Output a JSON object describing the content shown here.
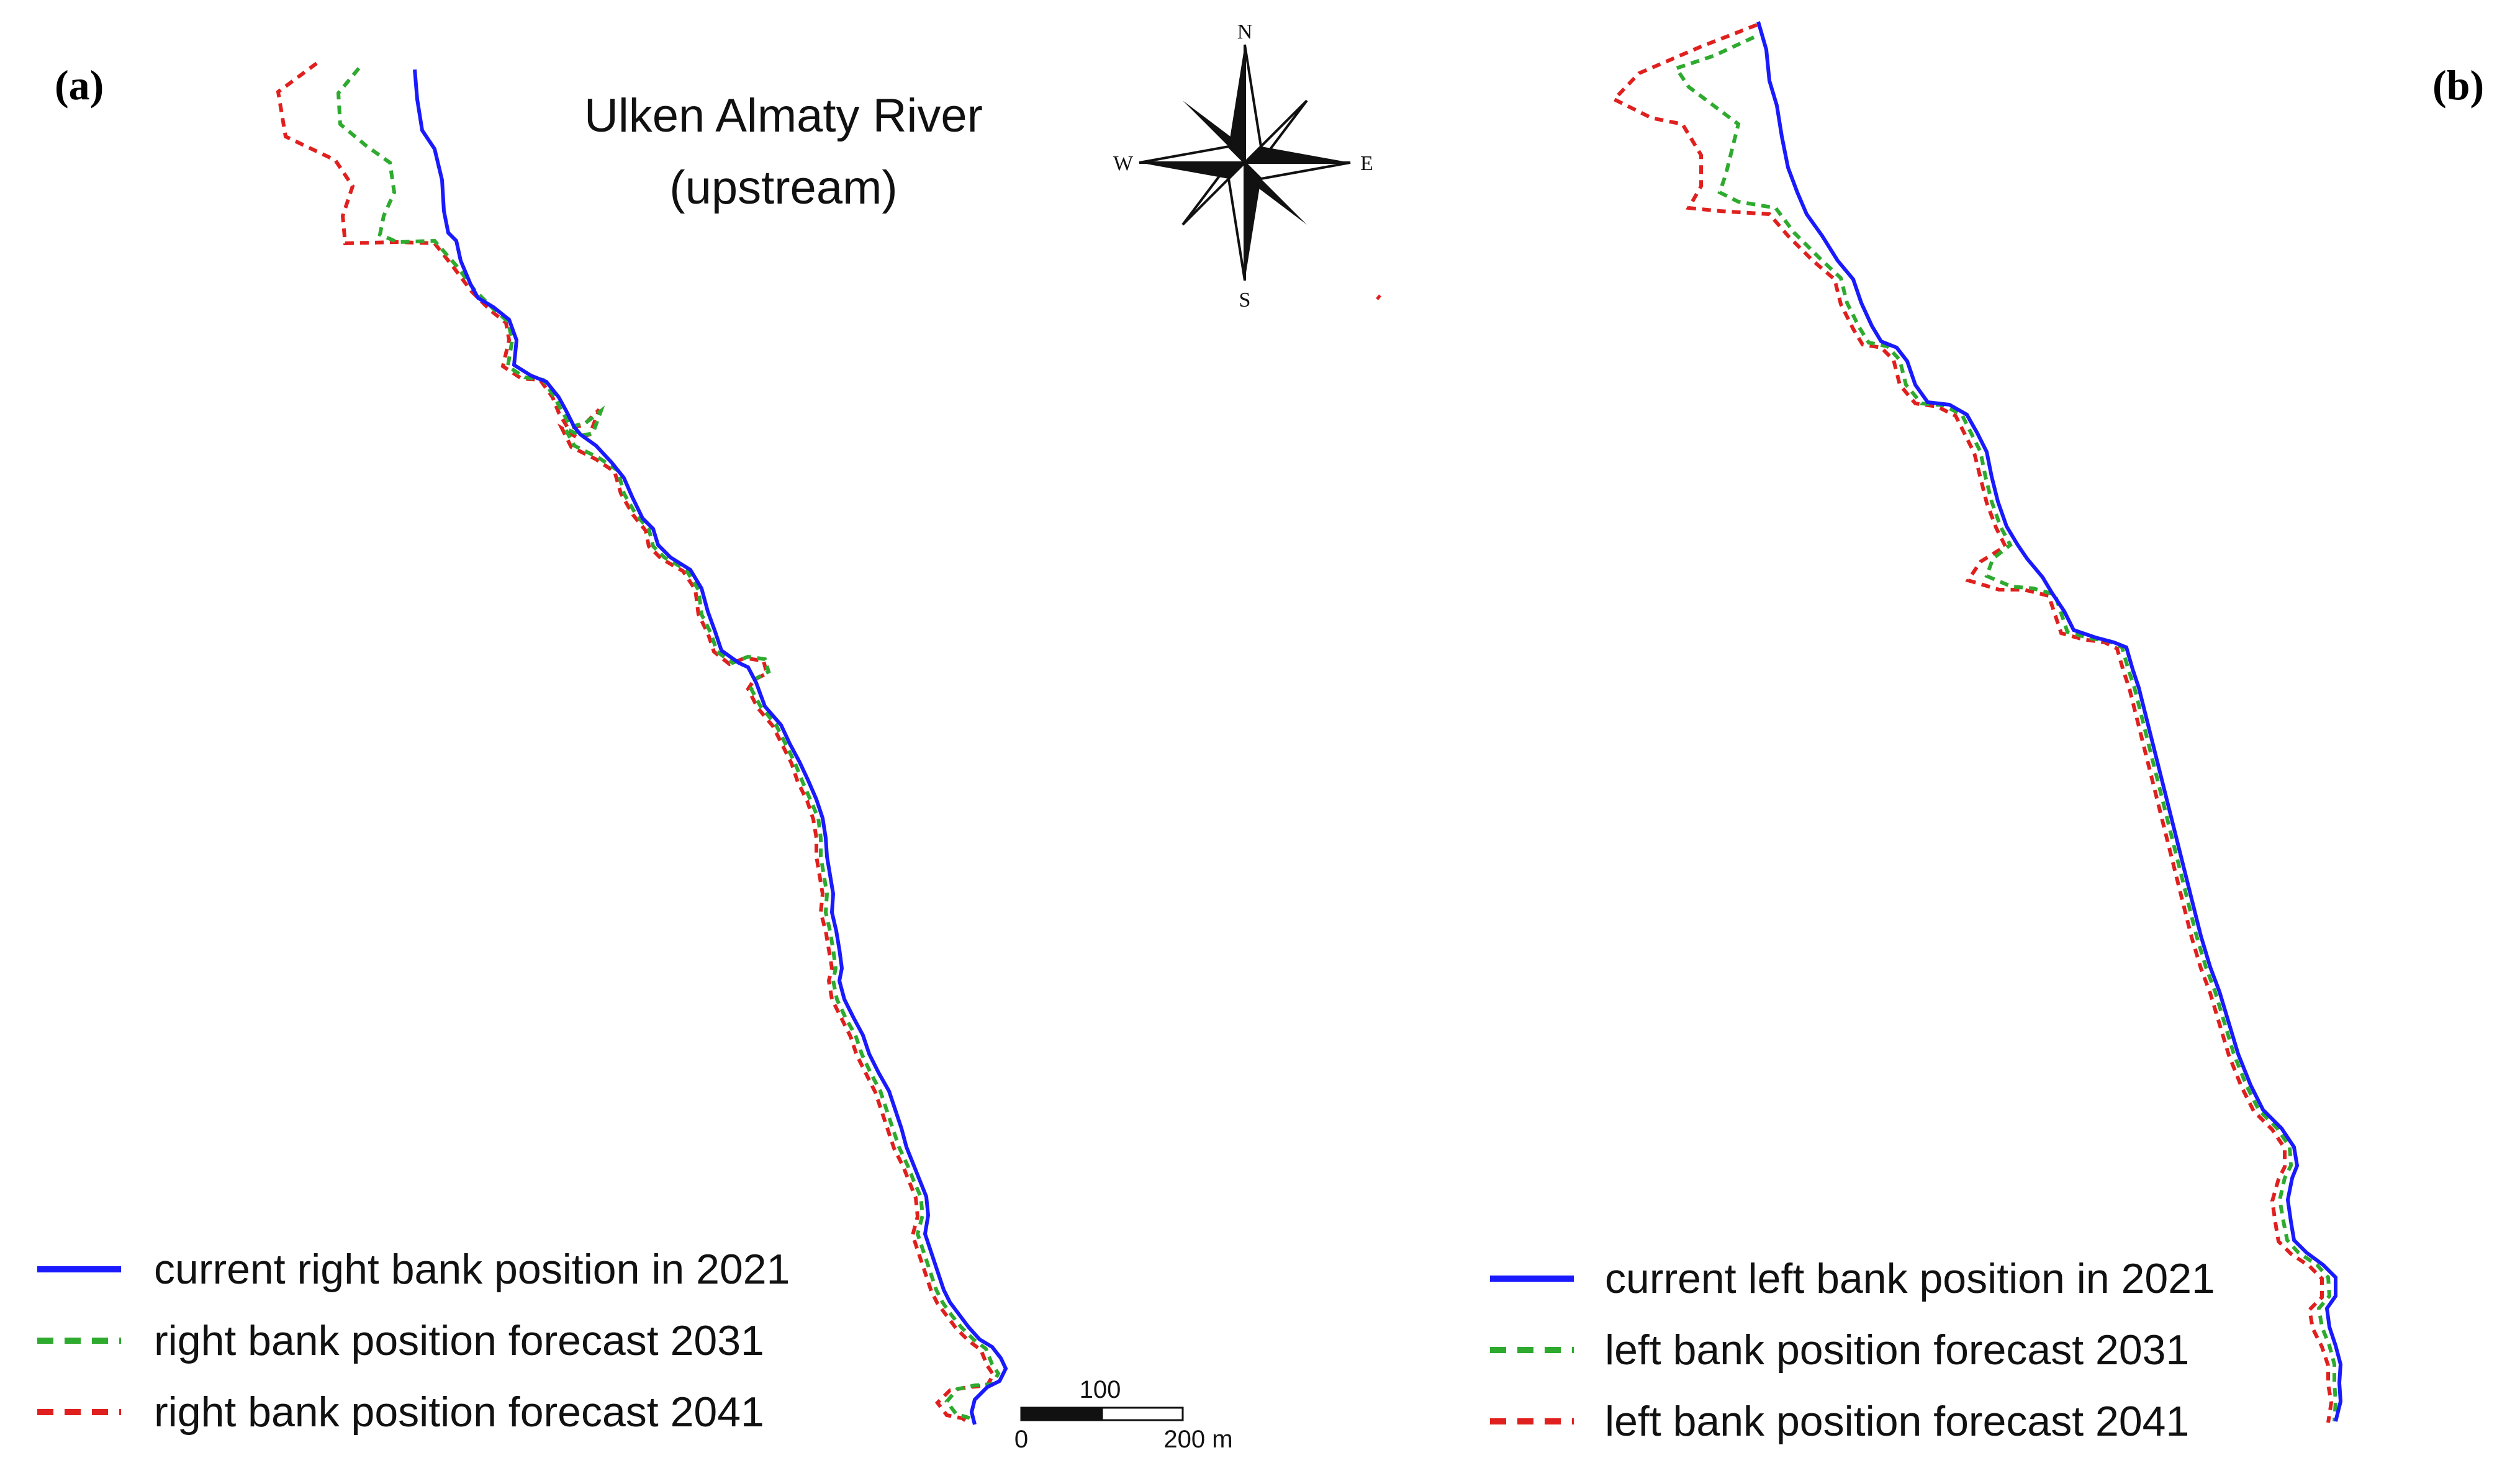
{
  "panels": [
    {
      "label": "(a)",
      "legend": [
        {
          "text": "current right bank position in 2021",
          "color": "#1a1aff",
          "style": "solid"
        },
        {
          "text": "right bank position forecast 2031",
          "color": "#2eaa2e",
          "style": "dashed"
        },
        {
          "text": "right bank position forecast 2041",
          "color": "#e0201e",
          "style": "dashed"
        }
      ]
    },
    {
      "label": "(b)",
      "legend": [
        {
          "text": "current left bank position in 2021",
          "color": "#1a1aff",
          "style": "solid"
        },
        {
          "text": "left bank position forecast 2031",
          "color": "#2eaa2e",
          "style": "dashed"
        },
        {
          "text": "left bank position forecast 2041",
          "color": "#e0201e",
          "style": "dashed"
        }
      ]
    }
  ],
  "title": {
    "line1": "Ulken Almaty River",
    "line2": "(upstream)"
  },
  "compass": {
    "north": "N",
    "south": "S",
    "east": "E",
    "west": "W"
  },
  "scale_bar": {
    "top_label": "100",
    "left_label": "0",
    "right_label": "200 m"
  },
  "colors": {
    "current": "#1a1aff",
    "forecast_2031": "#2eaa2e",
    "forecast_2041": "#e0201e"
  }
}
